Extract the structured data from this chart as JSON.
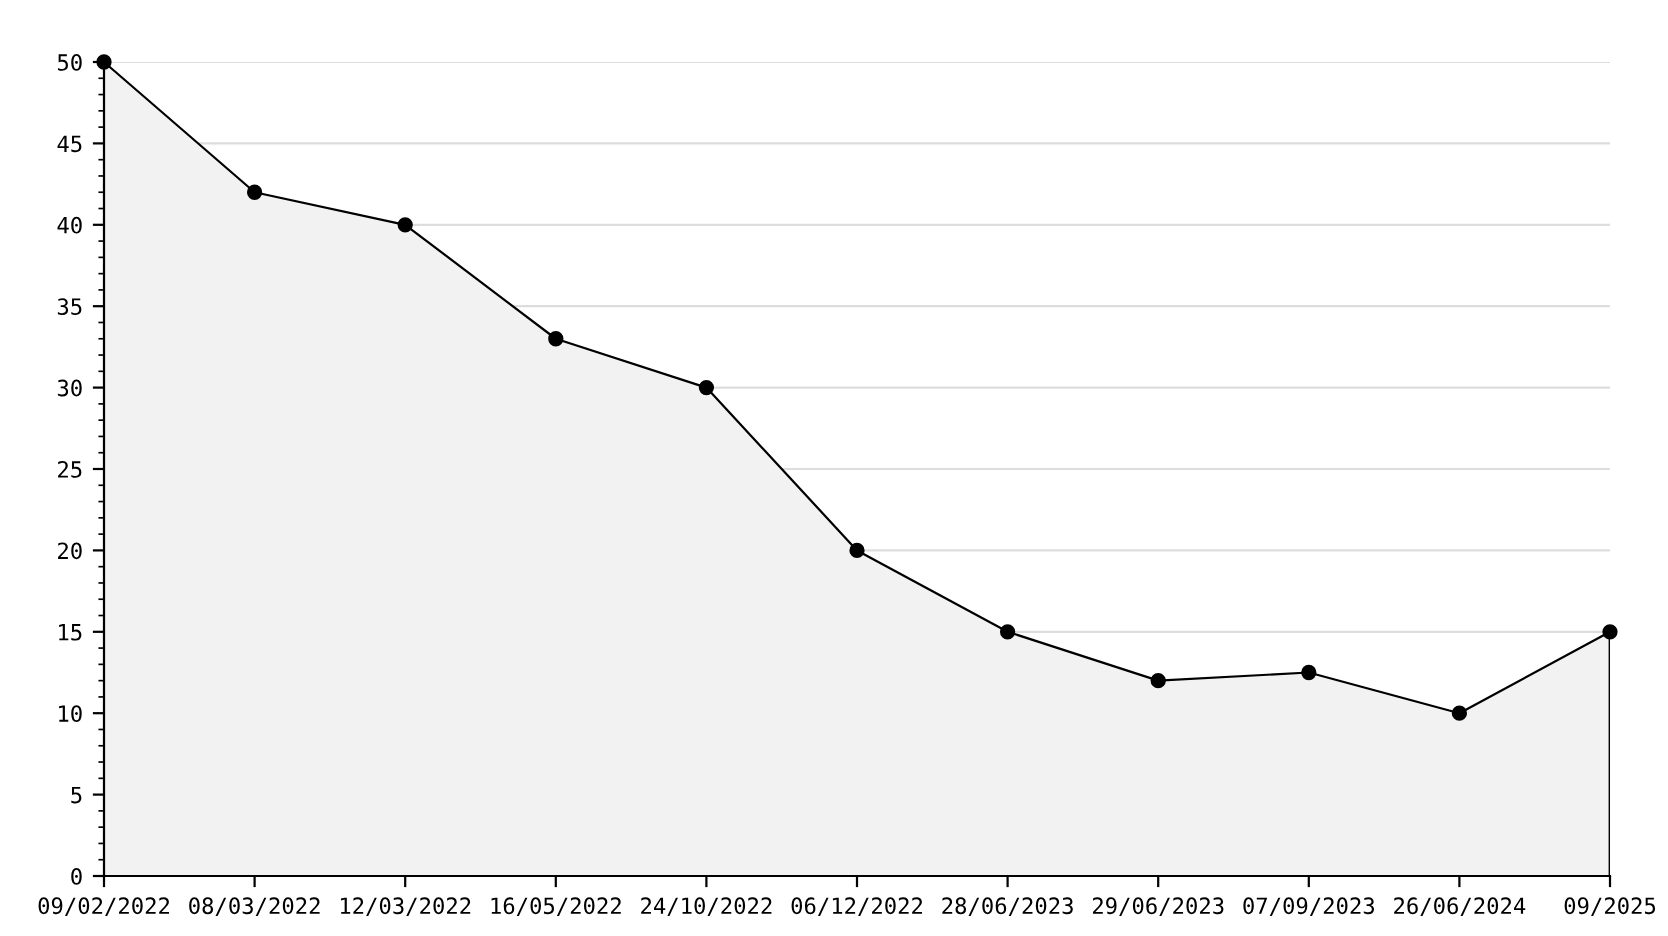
{
  "chart_data": {
    "type": "area",
    "categories": [
      "09/02/2022",
      "08/03/2022",
      "12/03/2022",
      "16/05/2022",
      "24/10/2022",
      "06/12/2022",
      "28/06/2023",
      "29/06/2023",
      "07/09/2023",
      "26/06/2024",
      "09/2025"
    ],
    "series": [
      {
        "color": "#f2f2f2",
        "values": [
          50,
          42,
          40,
          33,
          30,
          20,
          15,
          12,
          12.5,
          10,
          15
        ]
      }
    ],
    "ylim": [
      0,
      50
    ],
    "yticks": [
      0,
      5,
      10,
      15,
      20,
      25,
      30,
      35,
      40,
      45,
      50
    ],
    "grid": "y",
    "marker": "circle",
    "line_style": "solid",
    "legend": false
  }
}
